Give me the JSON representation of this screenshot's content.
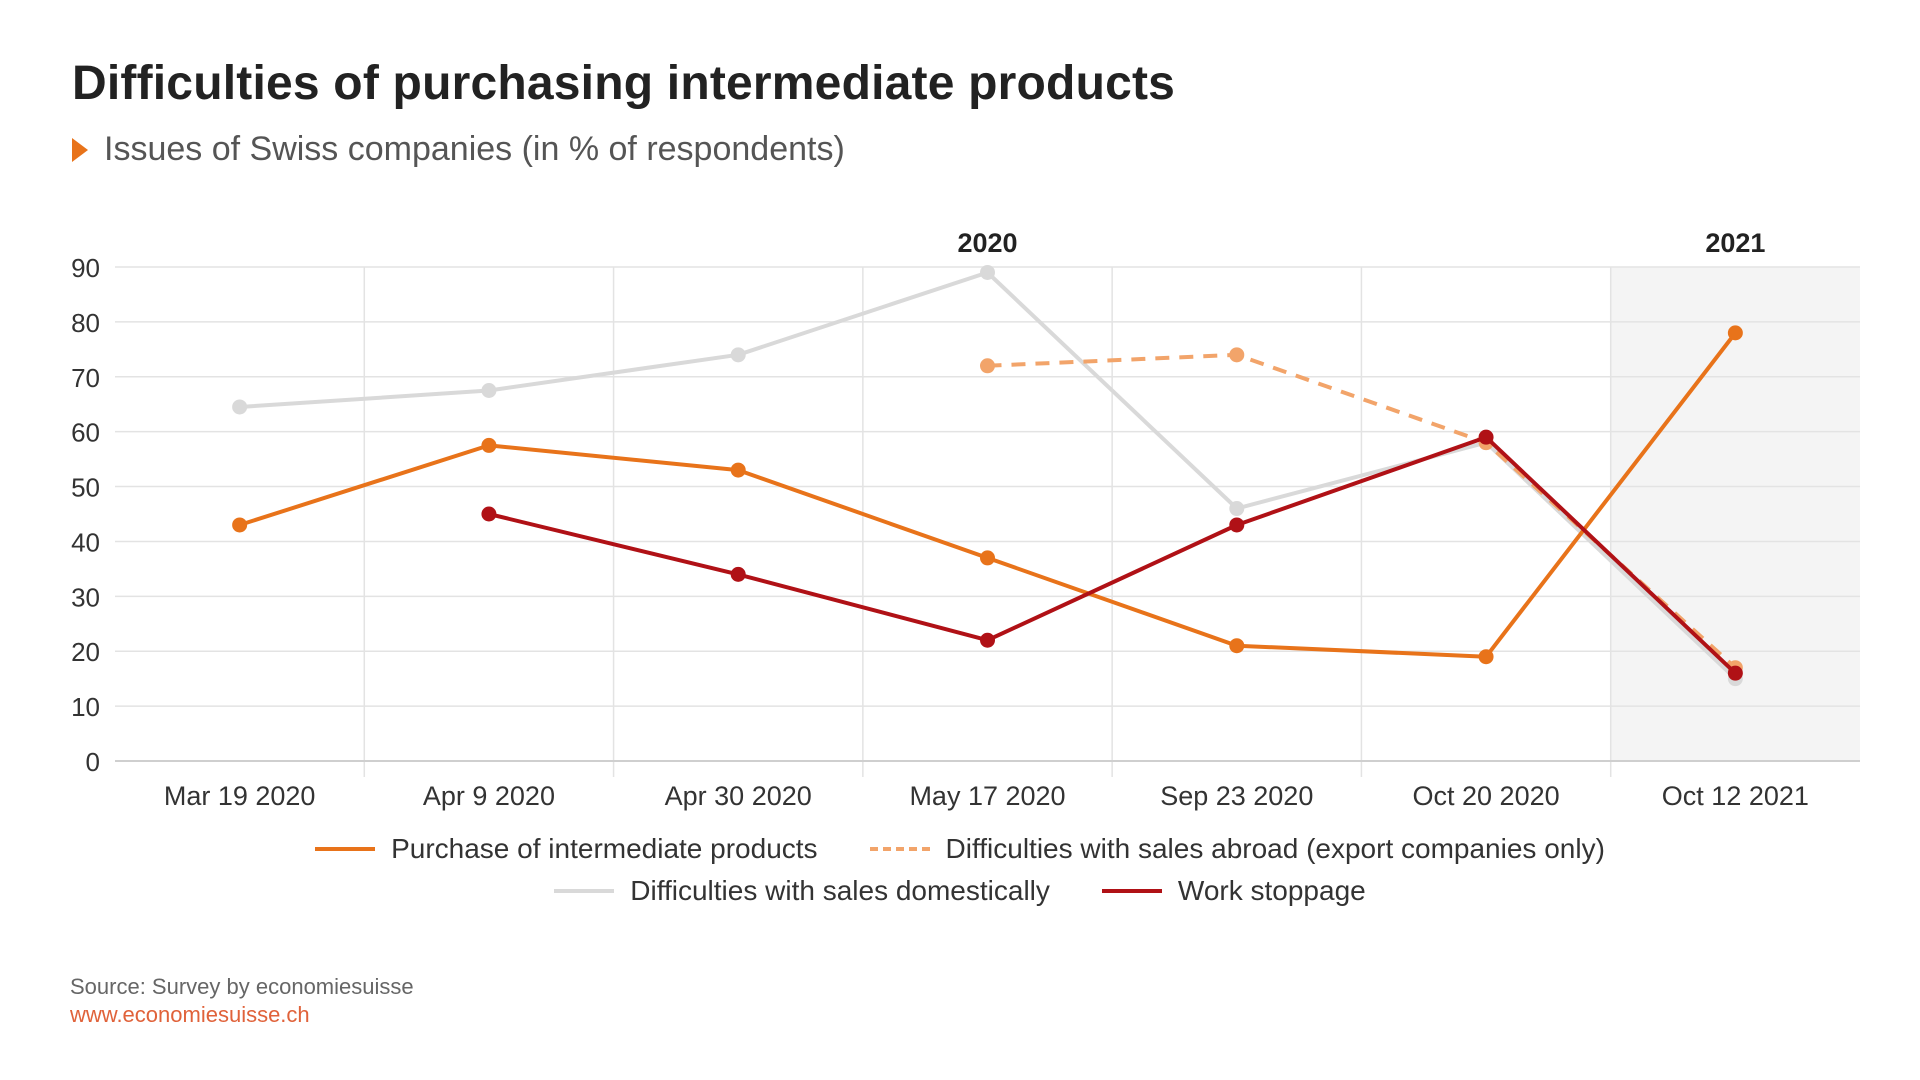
{
  "title": "Difficulties of purchasing intermediate products",
  "subtitle": "Issues of Swiss companies (in % of respondents)",
  "source": "Source: Survey by economiesuisse",
  "url": "www.economiesuisse.ch",
  "colors": {
    "purchase": "#e8731a",
    "abroad": "#f2a46a",
    "domestic": "#d9d9d9",
    "stoppage": "#b01116",
    "shade": "#f4f4f4",
    "grid": "#e3e3e3"
  },
  "chart_data": {
    "type": "line",
    "title": "Difficulties of purchasing intermediate products",
    "subtitle": "Issues of Swiss companies (in % of respondents)",
    "x": [
      "Mar 19 2020",
      "Apr 9 2020",
      "Apr 30 2020",
      "May 17 2020",
      "Sep 23 2020",
      "Oct 20 2020",
      "Oct 12 2021"
    ],
    "year_labels": [
      {
        "label": "2020",
        "from": 0,
        "to": 5
      },
      {
        "label": "2021",
        "from": 6,
        "to": 6
      }
    ],
    "ylim": [
      0,
      90
    ],
    "yticks": [
      0,
      10,
      20,
      30,
      40,
      50,
      60,
      70,
      80,
      90
    ],
    "grid": true,
    "legend_position": "bottom",
    "series": [
      {
        "name": "Purchase of intermediate products",
        "color_key": "purchase",
        "dashed": false,
        "values": [
          43,
          57.5,
          53,
          37,
          21,
          19,
          78
        ]
      },
      {
        "name": "Difficulties with sales abroad (export companies only)",
        "color_key": "abroad",
        "dashed": true,
        "values": [
          null,
          null,
          null,
          72,
          74,
          58,
          17
        ]
      },
      {
        "name": "Difficulties with sales domestically",
        "color_key": "domestic",
        "dashed": false,
        "values": [
          64.5,
          67.5,
          74,
          89,
          46,
          58,
          15
        ]
      },
      {
        "name": "Work stoppage",
        "color_key": "stoppage",
        "dashed": false,
        "values": [
          null,
          45,
          34,
          22,
          43,
          59,
          16
        ]
      }
    ]
  }
}
